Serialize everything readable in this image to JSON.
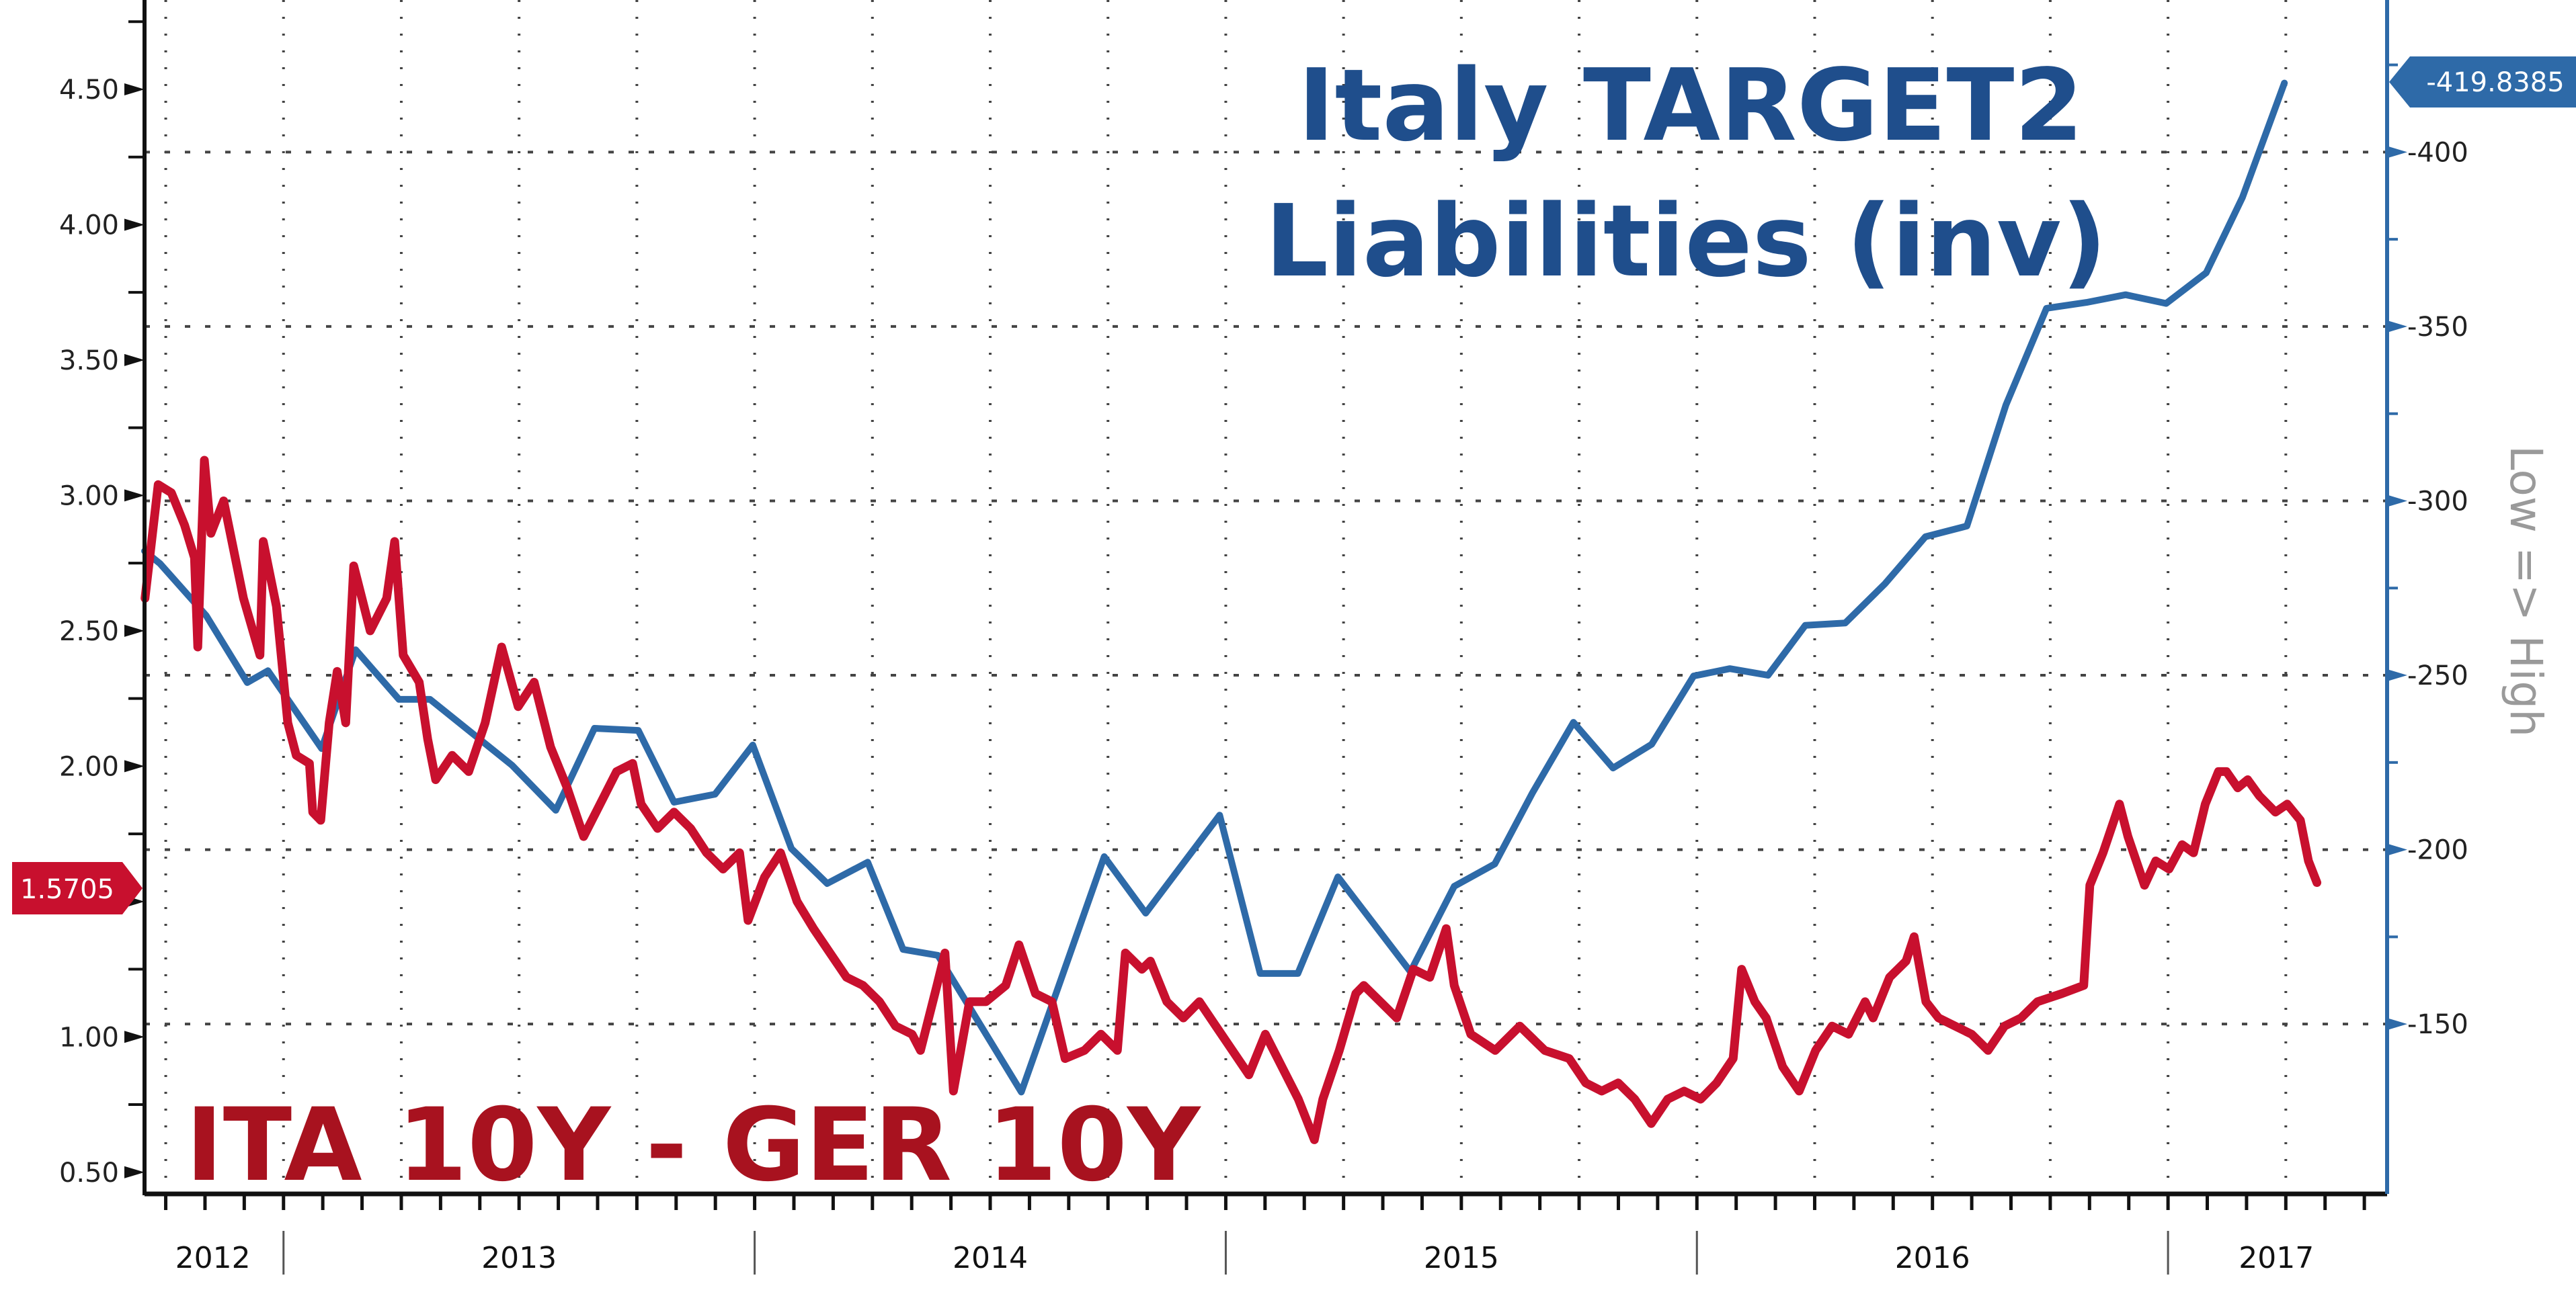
{
  "chart_data": {
    "type": "line",
    "title": "Italy TARGET2 Liabilities (inv)",
    "title_lines": [
      "Italy TARGET2",
      "Liabilities (inv)"
    ],
    "series_label": "ITA 10Y - GER 10Y",
    "x_axis": {
      "type": "time",
      "range": [
        2012.705,
        2017.465
      ],
      "year_labels": [
        {
          "label": "2012",
          "center": 2012.85
        },
        {
          "label": "2013",
          "center": 2013.5
        },
        {
          "label": "2014",
          "center": 2014.5
        },
        {
          "label": "2015",
          "center": 2015.5
        },
        {
          "label": "2016",
          "center": 2016.5
        },
        {
          "label": "2017",
          "center": 2017.23
        }
      ],
      "year_boundaries": [
        2013,
        2014,
        2015,
        2016,
        2017
      ],
      "gridlines": "quarterly",
      "minor_ticks": "monthly"
    },
    "y_left": {
      "label": "",
      "range": [
        0.42,
        4.83
      ],
      "ticks": [
        0.5,
        1.0,
        1.5,
        2.0,
        2.5,
        3.0,
        3.5,
        4.0,
        4.5
      ],
      "tick_labels": [
        "0.50",
        "1.00",
        "1.50",
        "2.00",
        "2.50",
        "3.00",
        "3.50",
        "4.00",
        "4.50"
      ],
      "last_value_tag": "1.5705",
      "last_value": 1.5705
    },
    "y_right": {
      "label": "Low => High",
      "inverted": true,
      "range": [
        -101.3,
        -443.6
      ],
      "ticks": [
        -150,
        -200,
        -250,
        -300,
        -350,
        -400
      ],
      "tick_labels": [
        "-150",
        "-200",
        "-250",
        "-300",
        "-350",
        "-400"
      ],
      "last_value_tag": "-419.8385",
      "last_value": -419.8385
    },
    "grid": true,
    "series": [
      {
        "name": "ITA 10Y - GER 10Y",
        "axis": "left",
        "color": "#c8102e",
        "points": [
          [
            2012.706,
            2.62
          ],
          [
            2012.734,
            3.04
          ],
          [
            2012.762,
            3.01
          ],
          [
            2012.79,
            2.89
          ],
          [
            2012.811,
            2.77
          ],
          [
            2012.818,
            2.44
          ],
          [
            2012.832,
            3.13
          ],
          [
            2012.846,
            2.86
          ],
          [
            2012.873,
            2.98
          ],
          [
            2012.915,
            2.62
          ],
          [
            2012.95,
            2.41
          ],
          [
            2012.957,
            2.83
          ],
          [
            2012.985,
            2.59
          ],
          [
            2013.009,
            2.16
          ],
          [
            2013.027,
            2.04
          ],
          [
            2013.055,
            2.01
          ],
          [
            2013.062,
            1.83
          ],
          [
            2013.079,
            1.8
          ],
          [
            2013.097,
            2.16
          ],
          [
            2013.114,
            2.35
          ],
          [
            2013.132,
            2.16
          ],
          [
            2013.149,
            2.74
          ],
          [
            2013.184,
            2.5
          ],
          [
            2013.219,
            2.62
          ],
          [
            2013.236,
            2.83
          ],
          [
            2013.254,
            2.41
          ],
          [
            2013.288,
            2.31
          ],
          [
            2013.306,
            2.1
          ],
          [
            2013.323,
            1.95
          ],
          [
            2013.358,
            2.04
          ],
          [
            2013.393,
            1.98
          ],
          [
            2013.428,
            2.16
          ],
          [
            2013.463,
            2.44
          ],
          [
            2013.498,
            2.22
          ],
          [
            2013.532,
            2.31
          ],
          [
            2013.567,
            2.07
          ],
          [
            2013.602,
            1.92
          ],
          [
            2013.637,
            1.74
          ],
          [
            2013.672,
            1.86
          ],
          [
            2013.707,
            1.98
          ],
          [
            2013.741,
            2.01
          ],
          [
            2013.759,
            1.86
          ],
          [
            2013.794,
            1.77
          ],
          [
            2013.829,
            1.83
          ],
          [
            2013.864,
            1.77
          ],
          [
            2013.898,
            1.68
          ],
          [
            2013.933,
            1.62
          ],
          [
            2013.968,
            1.68
          ],
          [
            2013.986,
            1.43
          ],
          [
            2014.021,
            1.59
          ],
          [
            2014.055,
            1.68
          ],
          [
            2014.09,
            1.5
          ],
          [
            2014.125,
            1.4
          ],
          [
            2014.16,
            1.31
          ],
          [
            2014.195,
            1.22
          ],
          [
            2014.23,
            1.19
          ],
          [
            2014.265,
            1.13
          ],
          [
            2014.299,
            1.04
          ],
          [
            2014.334,
            1.01
          ],
          [
            2014.352,
            0.95
          ],
          [
            2014.387,
            1.19
          ],
          [
            2014.404,
            1.31
          ],
          [
            2014.422,
            0.8
          ],
          [
            2014.456,
            1.13
          ],
          [
            2014.491,
            1.13
          ],
          [
            2014.533,
            1.19
          ],
          [
            2014.561,
            1.34
          ],
          [
            2014.596,
            1.16
          ],
          [
            2014.631,
            1.13
          ],
          [
            2014.659,
            0.92
          ],
          [
            2014.7,
            0.95
          ],
          [
            2014.735,
            1.01
          ],
          [
            2014.77,
            0.95
          ],
          [
            2014.787,
            1.31
          ],
          [
            2014.822,
            1.25
          ],
          [
            2014.84,
            1.28
          ],
          [
            2014.875,
            1.13
          ],
          [
            2014.91,
            1.07
          ],
          [
            2014.944,
            1.13
          ],
          [
            2014.979,
            1.04
          ],
          [
            2015.014,
            0.95
          ],
          [
            2015.049,
            0.86
          ],
          [
            2015.084,
            1.01
          ],
          [
            2015.119,
            0.89
          ],
          [
            2015.154,
            0.77
          ],
          [
            2015.188,
            0.62
          ],
          [
            2015.206,
            0.77
          ],
          [
            2015.241,
            0.95
          ],
          [
            2015.276,
            1.16
          ],
          [
            2015.293,
            1.19
          ],
          [
            2015.328,
            1.13
          ],
          [
            2015.363,
            1.07
          ],
          [
            2015.398,
            1.25
          ],
          [
            2015.433,
            1.22
          ],
          [
            2015.468,
            1.4
          ],
          [
            2015.485,
            1.19
          ],
          [
            2015.52,
            1.01
          ],
          [
            2015.572,
            0.95
          ],
          [
            2015.624,
            1.04
          ],
          [
            2015.677,
            0.95
          ],
          [
            2015.729,
            0.92
          ],
          [
            2015.764,
            0.83
          ],
          [
            2015.798,
            0.8
          ],
          [
            2015.833,
            0.83
          ],
          [
            2015.868,
            0.77
          ],
          [
            2015.903,
            0.68
          ],
          [
            2015.938,
            0.77
          ],
          [
            2015.973,
            0.8
          ],
          [
            2016.008,
            0.77
          ],
          [
            2016.042,
            0.83
          ],
          [
            2016.077,
            0.92
          ],
          [
            2016.095,
            1.25
          ],
          [
            2016.123,
            1.13
          ],
          [
            2016.147,
            1.07
          ],
          [
            2016.182,
            0.89
          ],
          [
            2016.217,
            0.8
          ],
          [
            2016.252,
            0.95
          ],
          [
            2016.287,
            1.04
          ],
          [
            2016.322,
            1.01
          ],
          [
            2016.357,
            1.13
          ],
          [
            2016.374,
            1.07
          ],
          [
            2016.409,
            1.22
          ],
          [
            2016.444,
            1.28
          ],
          [
            2016.461,
            1.37
          ],
          [
            2016.486,
            1.13
          ],
          [
            2016.513,
            1.07
          ],
          [
            2016.548,
            1.04
          ],
          [
            2016.583,
            1.01
          ],
          [
            2016.618,
            0.95
          ],
          [
            2016.653,
            1.04
          ],
          [
            2016.688,
            1.07
          ],
          [
            2016.723,
            1.13
          ],
          [
            2016.775,
            1.16
          ],
          [
            2016.821,
            1.19
          ],
          [
            2016.834,
            1.56
          ],
          [
            2016.862,
            1.68
          ],
          [
            2016.897,
            1.86
          ],
          [
            2016.915,
            1.74
          ],
          [
            2016.95,
            1.56
          ],
          [
            2016.974,
            1.65
          ],
          [
            2017.002,
            1.62
          ],
          [
            2017.03,
            1.71
          ],
          [
            2017.054,
            1.68
          ],
          [
            2017.079,
            1.86
          ],
          [
            2017.107,
            1.98
          ],
          [
            2017.124,
            1.98
          ],
          [
            2017.148,
            1.92
          ],
          [
            2017.169,
            1.95
          ],
          [
            2017.194,
            1.89
          ],
          [
            2017.228,
            1.83
          ],
          [
            2017.253,
            1.86
          ],
          [
            2017.281,
            1.8
          ],
          [
            2017.298,
            1.65
          ],
          [
            2017.316,
            1.57
          ]
        ]
      },
      {
        "name": "Italy TARGET2 Liabilities (inv)",
        "axis": "right",
        "color": "#2e6aa8",
        "points": [
          [
            2012.705,
            -285.6
          ],
          [
            2012.738,
            -282.0
          ],
          [
            2012.836,
            -267.1
          ],
          [
            2012.923,
            -247.9
          ],
          [
            2012.967,
            -251.3
          ],
          [
            2013.081,
            -229.0
          ],
          [
            2013.153,
            -257.3
          ],
          [
            2013.245,
            -243.1
          ],
          [
            2013.311,
            -243.1
          ],
          [
            2013.485,
            -224.2
          ],
          [
            2013.578,
            -211.3
          ],
          [
            2013.66,
            -234.8
          ],
          [
            2013.753,
            -234.2
          ],
          [
            2013.829,
            -213.6
          ],
          [
            2013.916,
            -215.9
          ],
          [
            2013.996,
            -230.0
          ],
          [
            2014.078,
            -200.3
          ],
          [
            2014.154,
            -190.3
          ],
          [
            2014.24,
            -196.4
          ],
          [
            2014.315,
            -171.4
          ],
          [
            2014.389,
            -169.7
          ],
          [
            2014.566,
            -130.5
          ],
          [
            2014.742,
            -198.0
          ],
          [
            2014.83,
            -181.8
          ],
          [
            2014.987,
            -209.9
          ],
          [
            2015.073,
            -164.5
          ],
          [
            2015.153,
            -164.5
          ],
          [
            2015.238,
            -192.2
          ],
          [
            2015.392,
            -165.0
          ],
          [
            2015.485,
            -189.5
          ],
          [
            2015.571,
            -195.9
          ],
          [
            2015.651,
            -216.3
          ],
          [
            2015.738,
            -236.5
          ],
          [
            2015.822,
            -223.4
          ],
          [
            2015.904,
            -230.2
          ],
          [
            2015.993,
            -249.8
          ],
          [
            2016.07,
            -251.9
          ],
          [
            2016.151,
            -250.0
          ],
          [
            2016.23,
            -264.3
          ],
          [
            2016.315,
            -265.0
          ],
          [
            2016.399,
            -276.2
          ],
          [
            2016.485,
            -289.7
          ],
          [
            2016.573,
            -292.8
          ],
          [
            2016.656,
            -327.5
          ],
          [
            2016.742,
            -355.2
          ],
          [
            2016.827,
            -356.9
          ],
          [
            2016.91,
            -359.1
          ],
          [
            2016.996,
            -356.6
          ],
          [
            2017.081,
            -365.4
          ],
          [
            2017.158,
            -387.0
          ],
          [
            2017.247,
            -419.8
          ]
        ]
      }
    ]
  },
  "colors": {
    "title": "#1f4e8c",
    "series_label": "#a8121f",
    "left_tag_bg": "#c8102e",
    "right_tag_bg": "#2e6aa8",
    "right_axis": "#2e6aa8",
    "right_title": "#9a9a9a"
  }
}
